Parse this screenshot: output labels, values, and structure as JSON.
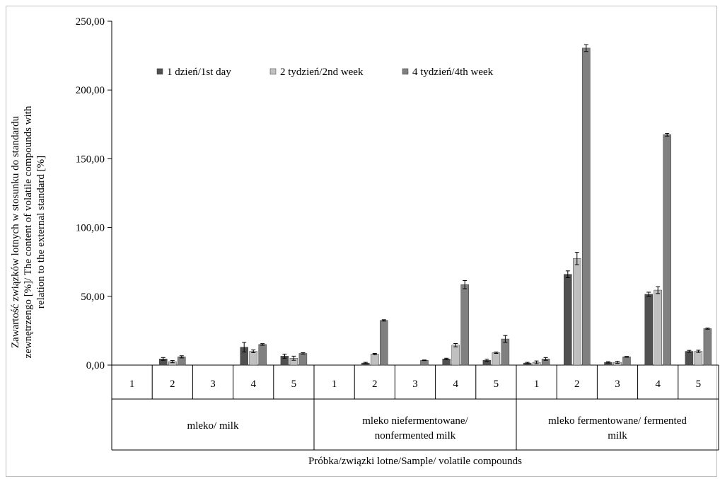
{
  "chart_data": {
    "type": "bar",
    "ylabel_line1": "Zawartość związków lotnych w stosunku do standardu",
    "ylabel_line2": "zewnętrzengo [%]/ The content of volatile compounds with",
    "ylabel_line3": "relation to the external standard [%]",
    "xlabel": "Próbka/związki lotne/Sample/ volatile compounds",
    "ylim": [
      0,
      250
    ],
    "yticks": [
      "0,00",
      "50,00",
      "100,00",
      "150,00",
      "200,00",
      "250,00"
    ],
    "ytick_values": [
      0,
      50,
      100,
      150,
      200,
      250
    ],
    "categories": [
      "1",
      "2",
      "3",
      "4",
      "5",
      "1",
      "2",
      "3",
      "4",
      "5",
      "1",
      "2",
      "3",
      "4",
      "5"
    ],
    "groups": [
      {
        "label_line1": "mleko/ milk",
        "label_line2": ""
      },
      {
        "label_line1": "mleko niefermentowane/",
        "label_line2": "nonfermented milk"
      },
      {
        "label_line1": "mleko fermentowane/ fermented",
        "label_line2": "milk"
      }
    ],
    "legend": {
      "placement": "top-left"
    },
    "series": [
      {
        "name": "1 dzień/1st day",
        "color": "#505050",
        "values": [
          0,
          4.5,
          0,
          13,
          6.5,
          0,
          1.5,
          0,
          4.5,
          3.5,
          1.5,
          66,
          2,
          51.5,
          10
        ],
        "errors": [
          0,
          1,
          0,
          3.5,
          1.5,
          0,
          0.5,
          0,
          0.5,
          0.8,
          0.5,
          2.5,
          0.5,
          1.5,
          0.7
        ]
      },
      {
        "name": "2 tydzień/2nd week",
        "color": "#c0c0c0",
        "values": [
          0,
          2.5,
          0,
          10,
          5,
          0,
          8,
          0,
          14.5,
          9,
          2,
          77.5,
          2,
          54.5,
          10
        ],
        "errors": [
          0,
          0.8,
          0,
          1,
          1.5,
          0,
          0.5,
          0,
          1.2,
          0.5,
          1,
          4.5,
          0.8,
          2.5,
          0.8
        ]
      },
      {
        "name": "4 tydzień/4th week",
        "color": "#808080",
        "values": [
          0,
          6,
          0,
          15,
          8.5,
          0,
          32.5,
          3.5,
          58.5,
          19,
          4.5,
          230.5,
          6,
          167.5,
          26.5
        ],
        "errors": [
          0,
          0.8,
          0,
          0.6,
          0.5,
          0,
          0.5,
          0.2,
          3,
          2.5,
          1,
          2.5,
          0.3,
          1,
          0.4
        ]
      }
    ]
  }
}
